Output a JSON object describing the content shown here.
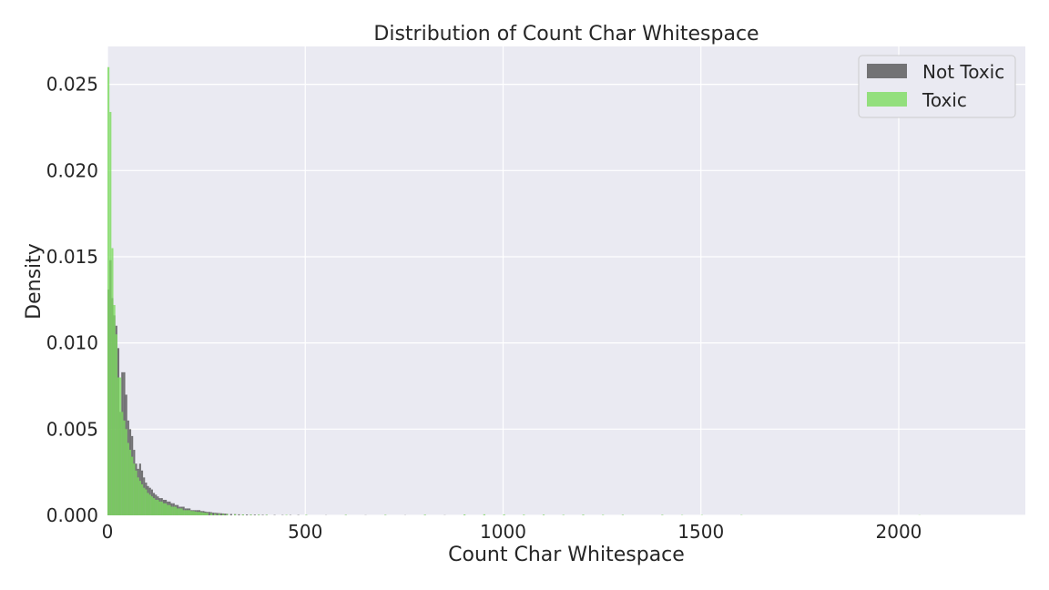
{
  "chart_data": {
    "type": "histogram",
    "title": "Distribution of Count Char Whitespace",
    "xlabel": "Count Char Whitespace",
    "ylabel": "Density",
    "xlim": [
      0,
      2320
    ],
    "ylim": [
      0,
      0.0272
    ],
    "x_ticks": [
      0,
      500,
      1000,
      1500,
      2000
    ],
    "x_tick_labels": [
      "0",
      "500",
      "1000",
      "1500",
      "2000"
    ],
    "y_ticks": [
      0,
      0.005,
      0.01,
      0.015,
      0.02,
      0.025
    ],
    "y_tick_labels": [
      "0.000",
      "0.005",
      "0.010",
      "0.015",
      "0.020",
      "0.025"
    ],
    "grid": true,
    "background": "#eaeaf2",
    "legend_position": "top-right",
    "bin_width": 5,
    "series": [
      {
        "name": "Not Toxic",
        "color": "#555555",
        "opacity": 0.8,
        "bins": [
          [
            0,
            0.0131
          ],
          [
            5,
            0.0148
          ],
          [
            10,
            0.0126
          ],
          [
            15,
            0.0116
          ],
          [
            20,
            0.011
          ],
          [
            25,
            0.0097
          ],
          [
            30,
            0.006
          ],
          [
            35,
            0.0083
          ],
          [
            40,
            0.0083
          ],
          [
            45,
            0.007
          ],
          [
            50,
            0.0055
          ],
          [
            55,
            0.005
          ],
          [
            60,
            0.0046
          ],
          [
            65,
            0.0038
          ],
          [
            70,
            0.003
          ],
          [
            75,
            0.0027
          ],
          [
            80,
            0.003
          ],
          [
            85,
            0.0026
          ],
          [
            90,
            0.0022
          ],
          [
            95,
            0.0019
          ],
          [
            100,
            0.0017
          ],
          [
            105,
            0.0016
          ],
          [
            110,
            0.0015
          ],
          [
            115,
            0.0013
          ],
          [
            120,
            0.0012
          ],
          [
            125,
            0.0011
          ],
          [
            130,
            0.001
          ],
          [
            135,
            0.001
          ],
          [
            140,
            0.0009
          ],
          [
            145,
            0.0009
          ],
          [
            150,
            0.0008
          ],
          [
            155,
            0.0008
          ],
          [
            160,
            0.0007
          ],
          [
            165,
            0.0007
          ],
          [
            170,
            0.0006
          ],
          [
            175,
            0.0006
          ],
          [
            180,
            0.0005
          ],
          [
            185,
            0.0005
          ],
          [
            190,
            0.0005
          ],
          [
            195,
            0.0004
          ],
          [
            200,
            0.0004
          ],
          [
            205,
            0.0004
          ],
          [
            210,
            0.0003
          ],
          [
            215,
            0.0003
          ],
          [
            220,
            0.0003
          ],
          [
            225,
            0.0003
          ],
          [
            230,
            0.0003
          ],
          [
            235,
            0.00025
          ],
          [
            240,
            0.00025
          ],
          [
            245,
            0.00022
          ],
          [
            250,
            0.0002
          ],
          [
            255,
            0.0002
          ],
          [
            260,
            0.00018
          ],
          [
            265,
            0.00016
          ],
          [
            270,
            0.00015
          ],
          [
            275,
            0.00014
          ],
          [
            280,
            0.00013
          ],
          [
            285,
            0.00012
          ],
          [
            290,
            0.00011
          ],
          [
            295,
            0.0001
          ],
          [
            300,
            9e-05
          ],
          [
            310,
            8e-05
          ],
          [
            320,
            7e-05
          ],
          [
            330,
            6e-05
          ],
          [
            340,
            5e-05
          ],
          [
            350,
            5e-05
          ],
          [
            360,
            4e-05
          ],
          [
            370,
            4e-05
          ],
          [
            380,
            3e-05
          ],
          [
            390,
            3e-05
          ],
          [
            400,
            3e-05
          ],
          [
            420,
            2e-05
          ],
          [
            440,
            2e-05
          ],
          [
            460,
            2e-05
          ],
          [
            480,
            2e-05
          ],
          [
            500,
            1e-05
          ],
          [
            550,
            1e-05
          ],
          [
            600,
            1e-05
          ],
          [
            650,
            1e-05
          ],
          [
            700,
            1e-05
          ],
          [
            750,
            1e-05
          ],
          [
            800,
            1e-05
          ],
          [
            850,
            1e-05
          ],
          [
            900,
            1e-05
          ],
          [
            950,
            1e-05
          ],
          [
            1000,
            1e-05
          ],
          [
            1100,
            1e-05
          ],
          [
            1200,
            1e-05
          ],
          [
            1300,
            1e-05
          ],
          [
            1400,
            1e-05
          ]
        ]
      },
      {
        "name": "Toxic",
        "color": "#7ddc5f",
        "opacity": 0.8,
        "bins": [
          [
            0,
            0.026
          ],
          [
            5,
            0.0234
          ],
          [
            10,
            0.0155
          ],
          [
            15,
            0.0122
          ],
          [
            20,
            0.0105
          ],
          [
            25,
            0.008
          ],
          [
            30,
            0.008
          ],
          [
            35,
            0.006
          ],
          [
            40,
            0.0055
          ],
          [
            45,
            0.005
          ],
          [
            50,
            0.0042
          ],
          [
            55,
            0.0038
          ],
          [
            60,
            0.0034
          ],
          [
            65,
            0.003
          ],
          [
            70,
            0.0026
          ],
          [
            75,
            0.0022
          ],
          [
            80,
            0.002
          ],
          [
            85,
            0.0018
          ],
          [
            90,
            0.0016
          ],
          [
            95,
            0.0015
          ],
          [
            100,
            0.0013
          ],
          [
            105,
            0.0012
          ],
          [
            110,
            0.0011
          ],
          [
            115,
            0.001
          ],
          [
            120,
            0.0009
          ],
          [
            125,
            0.0009
          ],
          [
            130,
            0.0008
          ],
          [
            135,
            0.0008
          ],
          [
            140,
            0.0007
          ],
          [
            145,
            0.0007
          ],
          [
            150,
            0.0006
          ],
          [
            155,
            0.0006
          ],
          [
            160,
            0.0005
          ],
          [
            165,
            0.0005
          ],
          [
            170,
            0.0005
          ],
          [
            175,
            0.0004
          ],
          [
            180,
            0.0004
          ],
          [
            185,
            0.0004
          ],
          [
            190,
            0.0003
          ],
          [
            195,
            0.0003
          ],
          [
            200,
            0.0003
          ],
          [
            205,
            0.0003
          ],
          [
            210,
            0.00025
          ],
          [
            215,
            0.00025
          ],
          [
            220,
            0.00022
          ],
          [
            225,
            0.0002
          ],
          [
            230,
            0.0002
          ],
          [
            235,
            0.00018
          ],
          [
            240,
            0.00016
          ],
          [
            245,
            0.00015
          ],
          [
            250,
            0.00014
          ],
          [
            260,
            0.00012
          ],
          [
            270,
            0.0001
          ],
          [
            280,
            9e-05
          ],
          [
            290,
            8e-05
          ],
          [
            300,
            7e-05
          ],
          [
            320,
            6e-05
          ],
          [
            340,
            5e-05
          ],
          [
            360,
            4e-05
          ],
          [
            380,
            4e-05
          ],
          [
            400,
            3e-05
          ],
          [
            450,
            3e-05
          ],
          [
            500,
            3e-05
          ],
          [
            600,
            3e-05
          ],
          [
            700,
            3e-05
          ],
          [
            800,
            4e-05
          ],
          [
            900,
            5e-05
          ],
          [
            950,
            6e-05
          ],
          [
            1000,
            5e-05
          ],
          [
            1050,
            4e-05
          ],
          [
            1100,
            4e-05
          ],
          [
            1150,
            3e-05
          ],
          [
            1200,
            4e-05
          ],
          [
            1250,
            3e-05
          ],
          [
            1300,
            3e-05
          ],
          [
            1400,
            3e-05
          ],
          [
            1450,
            2e-05
          ],
          [
            1500,
            2e-05
          ],
          [
            1600,
            2e-05
          ],
          [
            2050,
            1e-05
          ]
        ]
      }
    ]
  }
}
